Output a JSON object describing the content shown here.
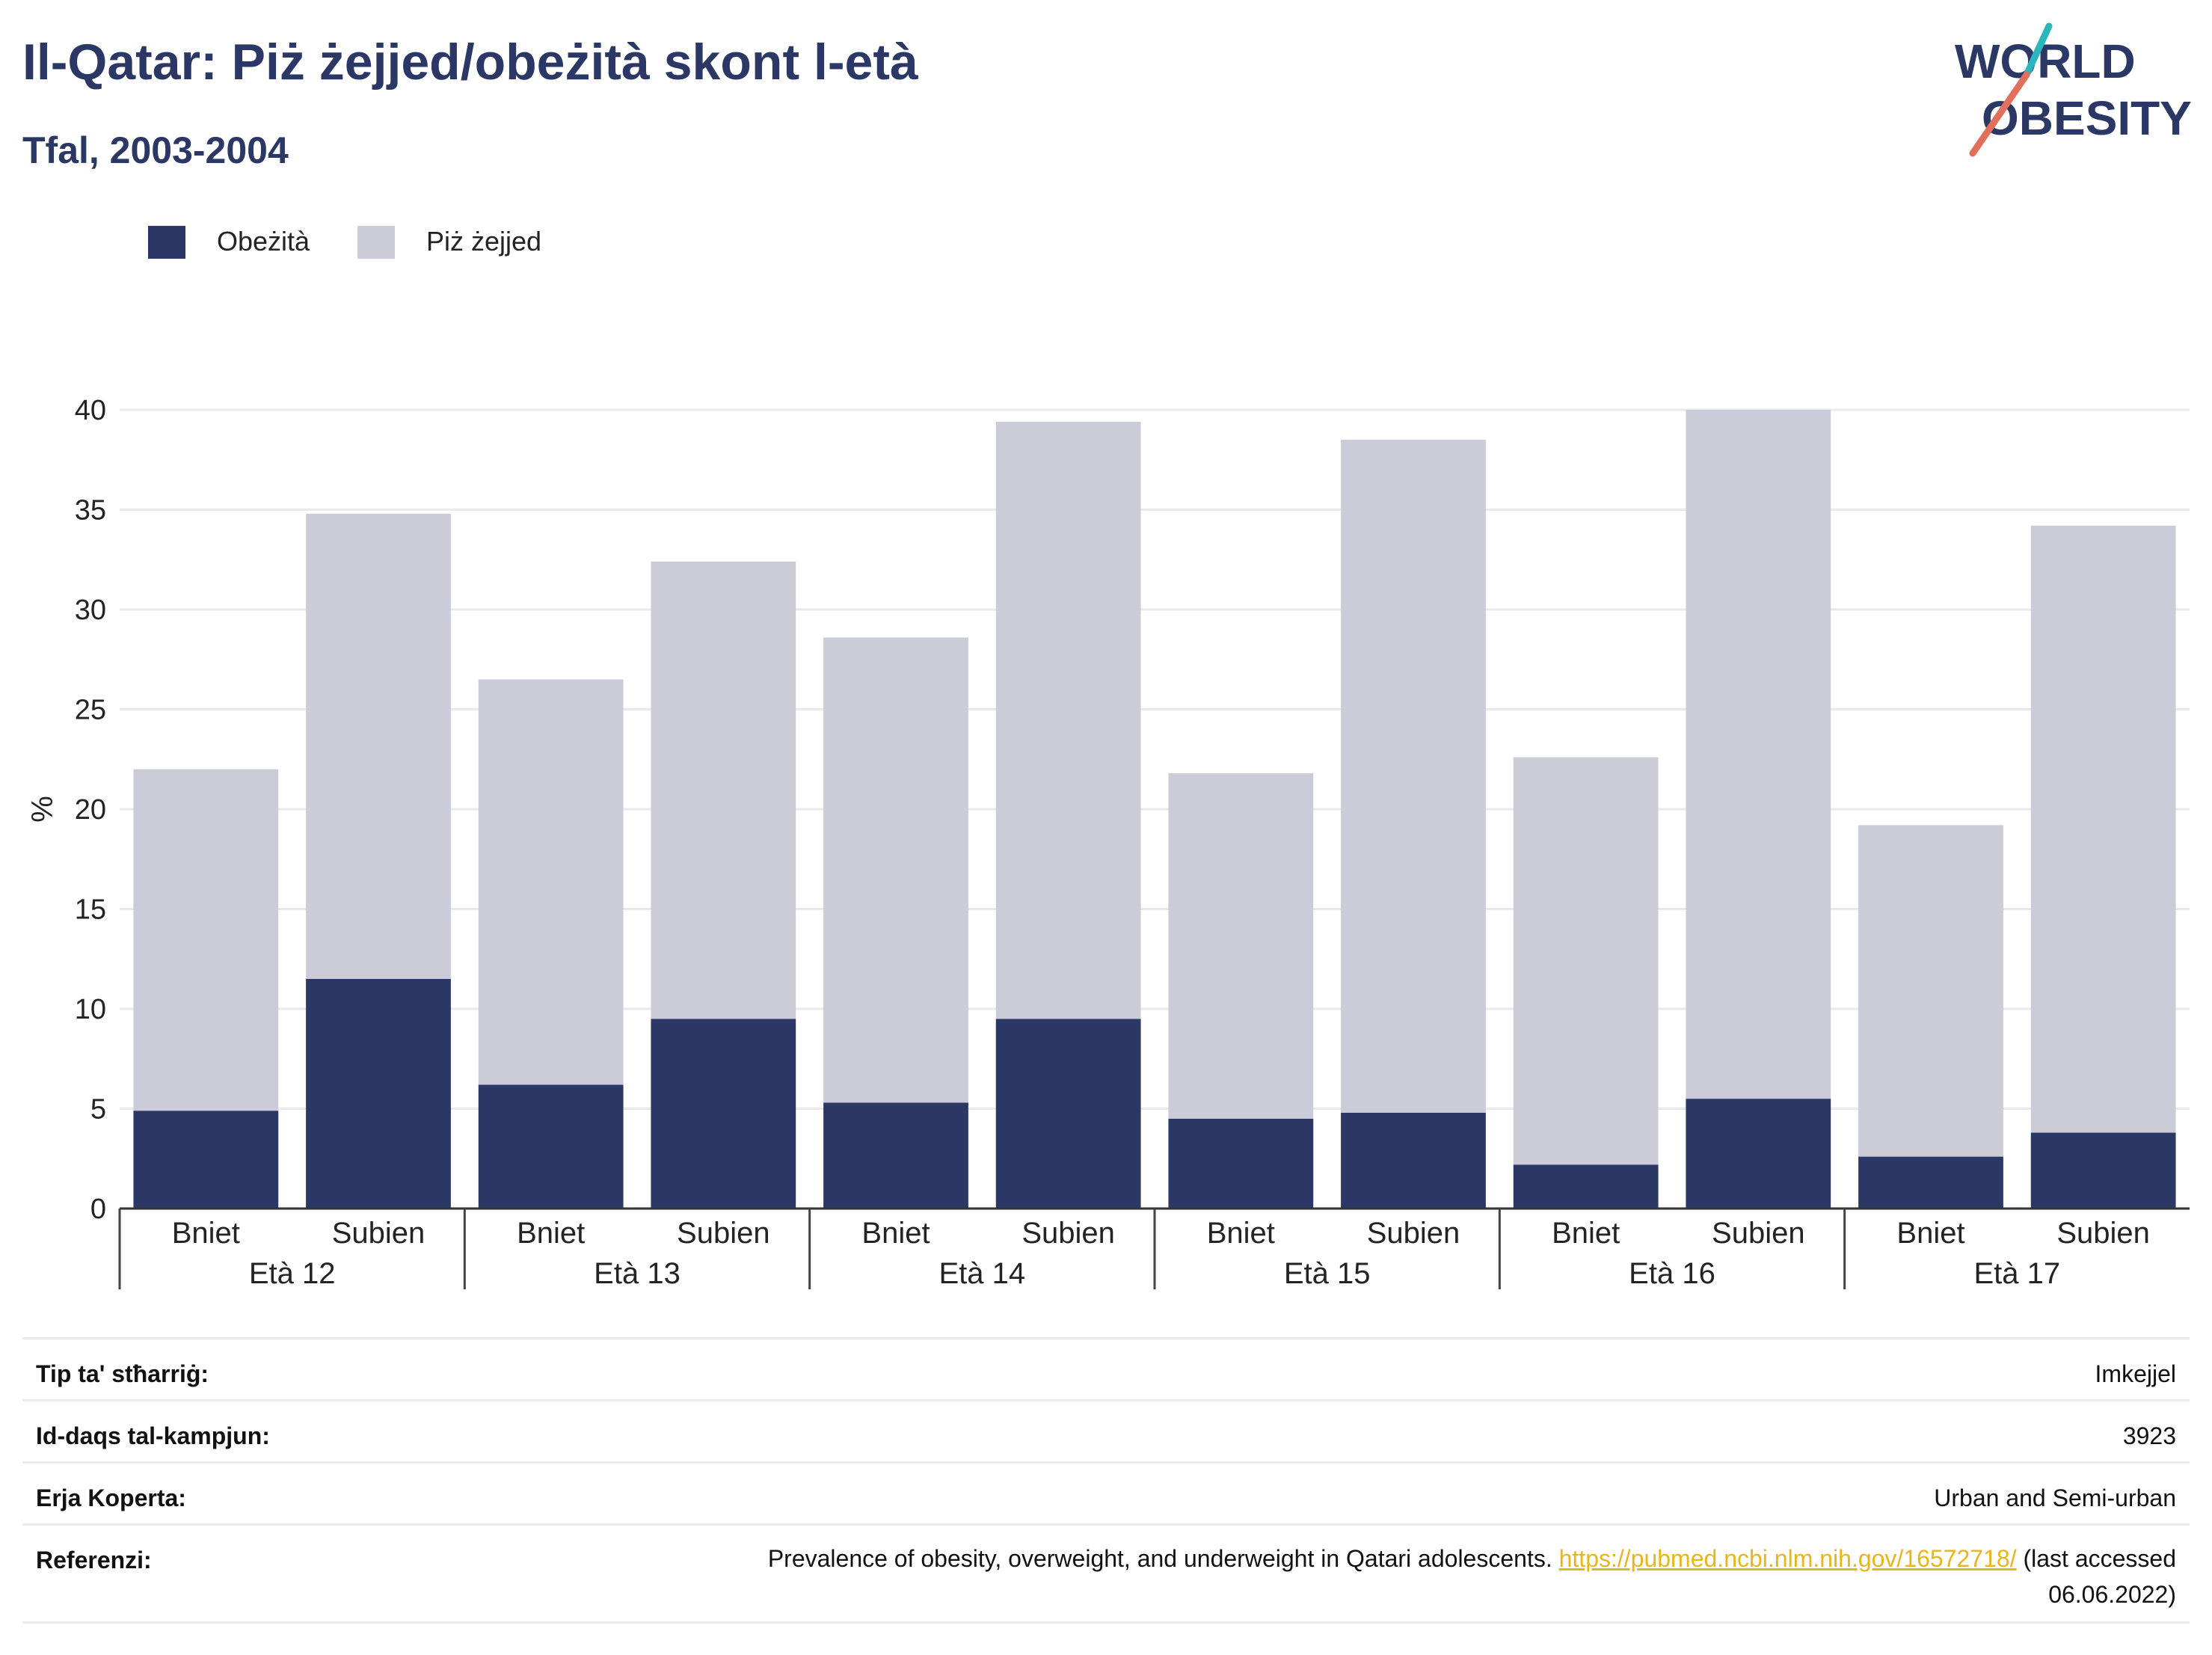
{
  "header": {
    "title": "Il-Qatar: Piż żejjed/obeżità skont l-età",
    "subtitle": "Tfal, 2003-2004"
  },
  "logo": {
    "line1": "WORLD",
    "line2": "OBESITY",
    "accent_teal": "#2bb6bd",
    "accent_coral": "#e26e5c",
    "text_color": "#2b3765"
  },
  "colors": {
    "obesity": "#2b3765",
    "overweight": "#cbccd8",
    "title": "#2b3765",
    "link": "#e8b51a"
  },
  "chart_data": {
    "type": "bar",
    "stacked": true,
    "groups": [
      "Età 12",
      "Età 13",
      "Età 14",
      "Età 15",
      "Età 16",
      "Età 17"
    ],
    "subcategories": [
      "Bniet",
      "Subien"
    ],
    "categories": [
      "Età 12 Bniet",
      "Età 12 Subien",
      "Età 13 Bniet",
      "Età 13 Subien",
      "Età 14 Bniet",
      "Età 14 Subien",
      "Età 15 Bniet",
      "Età 15 Subien",
      "Età 16 Bniet",
      "Età 16 Subien",
      "Età 17 Bniet",
      "Età 17 Subien"
    ],
    "series": [
      {
        "name": "Obeżità",
        "values": [
          4.9,
          11.5,
          6.2,
          9.5,
          5.3,
          9.5,
          4.5,
          4.8,
          2.2,
          5.5,
          2.6,
          3.8
        ]
      },
      {
        "name": "Piż żejjed",
        "values": [
          17.1,
          23.3,
          20.3,
          22.9,
          23.3,
          29.9,
          17.3,
          33.7,
          20.4,
          34.5,
          16.6,
          30.4
        ]
      }
    ],
    "ylabel": "%",
    "ylim": [
      0,
      40
    ],
    "yticks": [
      0,
      5,
      10,
      15,
      20,
      25,
      30,
      35,
      40
    ],
    "grid": true,
    "legend_position": "top-left"
  },
  "info": {
    "rows": [
      {
        "key": "Tip ta' stħarriġ:",
        "value": "Imkejjel"
      },
      {
        "key": "Id-daqs tal-kampjun:",
        "value": "3923"
      },
      {
        "key": "Erja Koperta:",
        "value": "Urban and Semi-urban"
      }
    ],
    "reference": {
      "key": "Referenzi:",
      "text": "Prevalence of obesity, overweight, and underweight in Qatari adolescents.",
      "link": "https://pubmed.ncbi.nlm.nih.gov/16572718/",
      "suffix": "(last accessed",
      "date": "06.06.2022)"
    }
  }
}
